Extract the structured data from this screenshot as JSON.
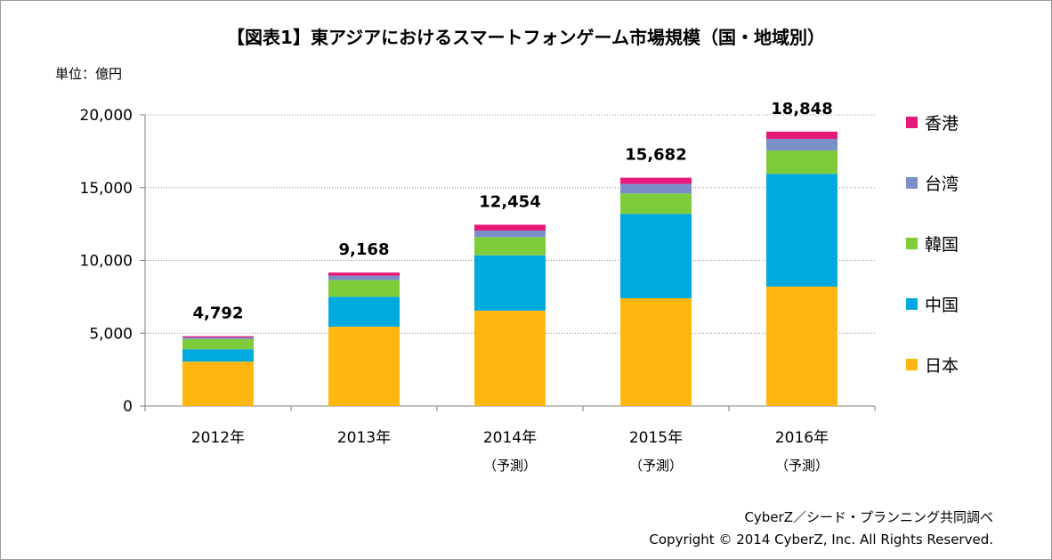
{
  "title": "【図表1】東アジアにおけるスマートフォンゲーム市場規模（国・地域別）",
  "unit_label": "単位：億円",
  "credits": [
    "CyberZ／シード・プランニング共同調べ",
    "Copyright © 2014 CyberZ, Inc.  All Rights Reserved."
  ],
  "chart_data": {
    "type": "bar",
    "stacked": true,
    "categories": [
      "2012年",
      "2013年",
      "2014年",
      "2015年",
      "2016年"
    ],
    "category_sublabels": [
      "",
      "",
      "（予測）",
      "（予測）",
      "（予測）"
    ],
    "totals": [
      "4,792",
      "9,168",
      "12,454",
      "15,682",
      "18,848"
    ],
    "series": [
      {
        "name": "日本",
        "color": "#FFB60F",
        "values": [
          3050,
          5450,
          6550,
          7400,
          8200
        ]
      },
      {
        "name": "中国",
        "color": "#00A9DE",
        "values": [
          850,
          2050,
          3800,
          5800,
          7750
        ]
      },
      {
        "name": "韓国",
        "color": "#7FCC3B",
        "values": [
          700,
          1150,
          1250,
          1400,
          1600
        ]
      },
      {
        "name": "台湾",
        "color": "#7B8FC9",
        "values": [
          110,
          300,
          450,
          650,
          800
        ]
      },
      {
        "name": "香港",
        "color": "#E6197B",
        "values": [
          82,
          218,
          404,
          432,
          498
        ]
      }
    ],
    "ylim": [
      0,
      20000
    ],
    "yticks": [
      "0",
      "5,000",
      "10,000",
      "15,000",
      "20,000"
    ],
    "ytick_values": [
      0,
      5000,
      10000,
      15000,
      20000
    ],
    "grid": true,
    "legend_position": "right",
    "legend_order": [
      "香港",
      "台湾",
      "韓国",
      "中国",
      "日本"
    ]
  }
}
